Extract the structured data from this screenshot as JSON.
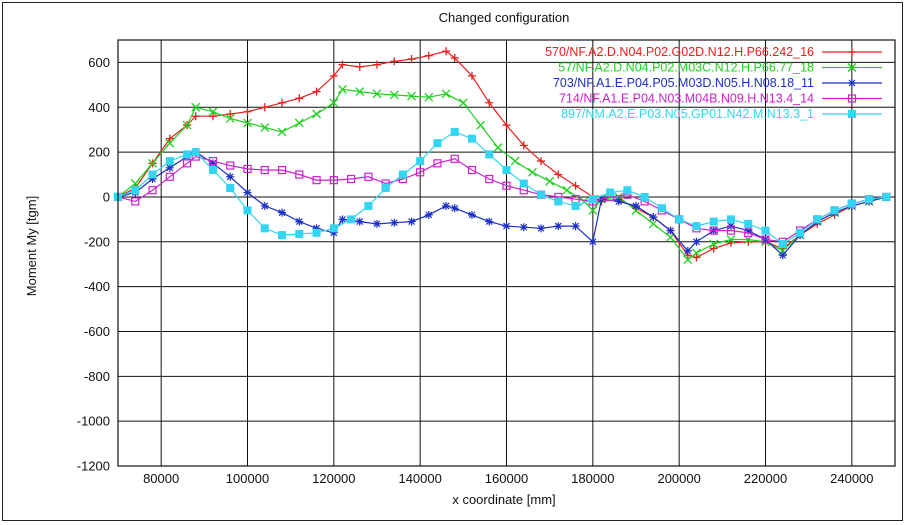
{
  "chart_data": {
    "type": "line",
    "title": "Changed configuration",
    "xlabel": "x coordinate [mm]",
    "ylabel": "Moment My [tgm]",
    "xlim": [
      70000,
      250000
    ],
    "ylim": [
      -1200,
      700
    ],
    "xticks": [
      80000,
      100000,
      120000,
      140000,
      160000,
      180000,
      200000,
      220000,
      240000
    ],
    "yticks": [
      -1200,
      -1000,
      -800,
      -600,
      -400,
      -200,
      0,
      200,
      400,
      600
    ],
    "grid": true,
    "legend_position": "top-right",
    "series": [
      {
        "name": "570/NF.A2.D.N04.P02.G02D.N12.H.P66.242_16",
        "color": "#e8201c",
        "marker": "plus",
        "points": [
          [
            70000,
            0
          ],
          [
            74000,
            40
          ],
          [
            78000,
            150
          ],
          [
            82000,
            260
          ],
          [
            86000,
            320
          ],
          [
            88000,
            360
          ],
          [
            92000,
            360
          ],
          [
            96000,
            370
          ],
          [
            100000,
            380
          ],
          [
            104000,
            400
          ],
          [
            108000,
            420
          ],
          [
            112000,
            440
          ],
          [
            116000,
            470
          ],
          [
            120000,
            540
          ],
          [
            122000,
            590
          ],
          [
            126000,
            580
          ],
          [
            130000,
            590
          ],
          [
            134000,
            605
          ],
          [
            138000,
            615
          ],
          [
            142000,
            630
          ],
          [
            146000,
            650
          ],
          [
            148000,
            620
          ],
          [
            152000,
            540
          ],
          [
            156000,
            420
          ],
          [
            160000,
            320
          ],
          [
            164000,
            230
          ],
          [
            168000,
            160
          ],
          [
            172000,
            100
          ],
          [
            176000,
            50
          ],
          [
            180000,
            0
          ],
          [
            182000,
            -20
          ],
          [
            186000,
            -10
          ],
          [
            190000,
            -50
          ],
          [
            194000,
            -90
          ],
          [
            198000,
            -150
          ],
          [
            202000,
            -260
          ],
          [
            204000,
            -270
          ],
          [
            208000,
            -230
          ],
          [
            212000,
            -205
          ],
          [
            216000,
            -200
          ],
          [
            220000,
            -200
          ],
          [
            224000,
            -230
          ],
          [
            228000,
            -170
          ],
          [
            232000,
            -120
          ],
          [
            236000,
            -80
          ],
          [
            240000,
            -40
          ],
          [
            244000,
            -20
          ],
          [
            248000,
            0
          ]
        ]
      },
      {
        "name": "57/NF.A2.D.N04.P02.M03C.N12.H.P66.77_18",
        "color": "#20d020",
        "marker": "x",
        "points": [
          [
            70000,
            0
          ],
          [
            74000,
            60
          ],
          [
            78000,
            150
          ],
          [
            82000,
            240
          ],
          [
            86000,
            320
          ],
          [
            88000,
            400
          ],
          [
            92000,
            380
          ],
          [
            96000,
            350
          ],
          [
            100000,
            330
          ],
          [
            104000,
            310
          ],
          [
            108000,
            290
          ],
          [
            112000,
            330
          ],
          [
            116000,
            370
          ],
          [
            120000,
            420
          ],
          [
            122000,
            480
          ],
          [
            126000,
            470
          ],
          [
            130000,
            460
          ],
          [
            134000,
            455
          ],
          [
            138000,
            450
          ],
          [
            142000,
            445
          ],
          [
            146000,
            460
          ],
          [
            150000,
            420
          ],
          [
            154000,
            320
          ],
          [
            158000,
            220
          ],
          [
            162000,
            160
          ],
          [
            166000,
            110
          ],
          [
            170000,
            70
          ],
          [
            174000,
            30
          ],
          [
            178000,
            -20
          ],
          [
            180000,
            -60
          ],
          [
            182000,
            -10
          ],
          [
            186000,
            0
          ],
          [
            190000,
            -60
          ],
          [
            194000,
            -120
          ],
          [
            198000,
            -180
          ],
          [
            202000,
            -280
          ],
          [
            204000,
            -250
          ],
          [
            208000,
            -210
          ],
          [
            212000,
            -190
          ],
          [
            216000,
            -190
          ],
          [
            220000,
            -200
          ],
          [
            224000,
            -240
          ],
          [
            228000,
            -170
          ],
          [
            232000,
            -110
          ],
          [
            236000,
            -70
          ],
          [
            240000,
            -40
          ],
          [
            244000,
            -20
          ],
          [
            248000,
            0
          ]
        ]
      },
      {
        "name": "703/NF.A1.E.P04.P05.M03D.N05.H.N08.18_11",
        "color": "#1c2fc8",
        "marker": "star",
        "points": [
          [
            70000,
            0
          ],
          [
            74000,
            20
          ],
          [
            78000,
            80
          ],
          [
            82000,
            130
          ],
          [
            86000,
            180
          ],
          [
            88000,
            200
          ],
          [
            92000,
            150
          ],
          [
            96000,
            90
          ],
          [
            100000,
            20
          ],
          [
            104000,
            -40
          ],
          [
            108000,
            -70
          ],
          [
            112000,
            -110
          ],
          [
            116000,
            -140
          ],
          [
            120000,
            -160
          ],
          [
            122000,
            -100
          ],
          [
            126000,
            -110
          ],
          [
            130000,
            -120
          ],
          [
            134000,
            -115
          ],
          [
            138000,
            -110
          ],
          [
            142000,
            -80
          ],
          [
            146000,
            -40
          ],
          [
            148000,
            -50
          ],
          [
            152000,
            -80
          ],
          [
            156000,
            -110
          ],
          [
            160000,
            -130
          ],
          [
            164000,
            -135
          ],
          [
            168000,
            -140
          ],
          [
            172000,
            -130
          ],
          [
            176000,
            -130
          ],
          [
            180000,
            -200
          ],
          [
            182000,
            -10
          ],
          [
            186000,
            -20
          ],
          [
            190000,
            -40
          ],
          [
            194000,
            -90
          ],
          [
            198000,
            -150
          ],
          [
            202000,
            -240
          ],
          [
            204000,
            -200
          ],
          [
            208000,
            -150
          ],
          [
            212000,
            -130
          ],
          [
            216000,
            -150
          ],
          [
            220000,
            -190
          ],
          [
            224000,
            -260
          ],
          [
            228000,
            -170
          ],
          [
            232000,
            -110
          ],
          [
            236000,
            -70
          ],
          [
            240000,
            -40
          ],
          [
            244000,
            -20
          ],
          [
            248000,
            0
          ]
        ]
      },
      {
        "name": "714/NF.A1.E.P04.N03.M04B.N09.H.N13.4_14",
        "color": "#cc22cc",
        "marker": "square-open",
        "points": [
          [
            70000,
            0
          ],
          [
            74000,
            -20
          ],
          [
            78000,
            30
          ],
          [
            82000,
            90
          ],
          [
            86000,
            150
          ],
          [
            88000,
            180
          ],
          [
            92000,
            160
          ],
          [
            96000,
            140
          ],
          [
            100000,
            125
          ],
          [
            104000,
            120
          ],
          [
            108000,
            120
          ],
          [
            112000,
            100
          ],
          [
            116000,
            75
          ],
          [
            120000,
            75
          ],
          [
            124000,
            80
          ],
          [
            128000,
            90
          ],
          [
            132000,
            60
          ],
          [
            136000,
            80
          ],
          [
            140000,
            110
          ],
          [
            144000,
            150
          ],
          [
            148000,
            170
          ],
          [
            152000,
            120
          ],
          [
            156000,
            80
          ],
          [
            160000,
            50
          ],
          [
            164000,
            30
          ],
          [
            168000,
            10
          ],
          [
            172000,
            0
          ],
          [
            176000,
            -10
          ],
          [
            180000,
            -20
          ],
          [
            184000,
            0
          ],
          [
            188000,
            10
          ],
          [
            192000,
            -20
          ],
          [
            196000,
            -60
          ],
          [
            200000,
            -100
          ],
          [
            204000,
            -140
          ],
          [
            208000,
            -150
          ],
          [
            212000,
            -150
          ],
          [
            216000,
            -160
          ],
          [
            220000,
            -190
          ],
          [
            224000,
            -200
          ],
          [
            228000,
            -150
          ],
          [
            232000,
            -100
          ],
          [
            236000,
            -60
          ],
          [
            240000,
            -30
          ],
          [
            244000,
            -10
          ],
          [
            248000,
            0
          ]
        ]
      },
      {
        "name": "897/NM.A2.E.P03.N05.GP01.N42.M.N13.3_1",
        "color": "#33d5f0",
        "marker": "square-filled",
        "points": [
          [
            70000,
            0
          ],
          [
            74000,
            30
          ],
          [
            78000,
            100
          ],
          [
            82000,
            160
          ],
          [
            86000,
            190
          ],
          [
            88000,
            200
          ],
          [
            92000,
            120
          ],
          [
            96000,
            40
          ],
          [
            100000,
            -60
          ],
          [
            104000,
            -140
          ],
          [
            108000,
            -170
          ],
          [
            112000,
            -165
          ],
          [
            116000,
            -160
          ],
          [
            120000,
            -140
          ],
          [
            124000,
            -100
          ],
          [
            128000,
            -40
          ],
          [
            132000,
            40
          ],
          [
            136000,
            100
          ],
          [
            140000,
            160
          ],
          [
            144000,
            240
          ],
          [
            148000,
            290
          ],
          [
            152000,
            260
          ],
          [
            156000,
            190
          ],
          [
            160000,
            120
          ],
          [
            164000,
            60
          ],
          [
            168000,
            10
          ],
          [
            172000,
            -20
          ],
          [
            176000,
            -40
          ],
          [
            180000,
            -10
          ],
          [
            184000,
            20
          ],
          [
            188000,
            30
          ],
          [
            192000,
            0
          ],
          [
            196000,
            -50
          ],
          [
            200000,
            -100
          ],
          [
            204000,
            -130
          ],
          [
            208000,
            -110
          ],
          [
            212000,
            -100
          ],
          [
            216000,
            -120
          ],
          [
            220000,
            -150
          ],
          [
            224000,
            -210
          ],
          [
            228000,
            -160
          ],
          [
            232000,
            -100
          ],
          [
            236000,
            -60
          ],
          [
            240000,
            -30
          ],
          [
            244000,
            -10
          ],
          [
            248000,
            0
          ]
        ]
      }
    ]
  }
}
